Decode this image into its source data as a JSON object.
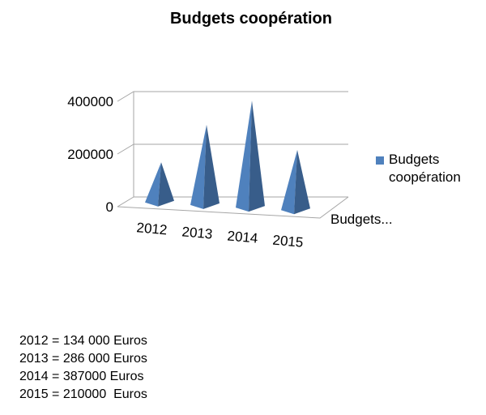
{
  "chart_data": {
    "type": "bar",
    "title": "Budgets coopération",
    "categories": [
      "2012",
      "2013",
      "2014",
      "2015"
    ],
    "series": [
      {
        "name": "Budgets coopération",
        "values": [
          134000,
          286000,
          387000,
          210000
        ]
      }
    ],
    "ytick_labels": [
      "400000",
      "200000",
      "0"
    ],
    "ylim": [
      0,
      400000
    ],
    "depth_axis_label": "Budgets...",
    "legend": "right",
    "grid": true,
    "color": "#4f81bd"
  },
  "notes": [
    "2012 = 134 000 Euros",
    "2013 = 286 000 Euros",
    "2014 = 387000 Euros",
    "2015 = 210000  Euros"
  ]
}
